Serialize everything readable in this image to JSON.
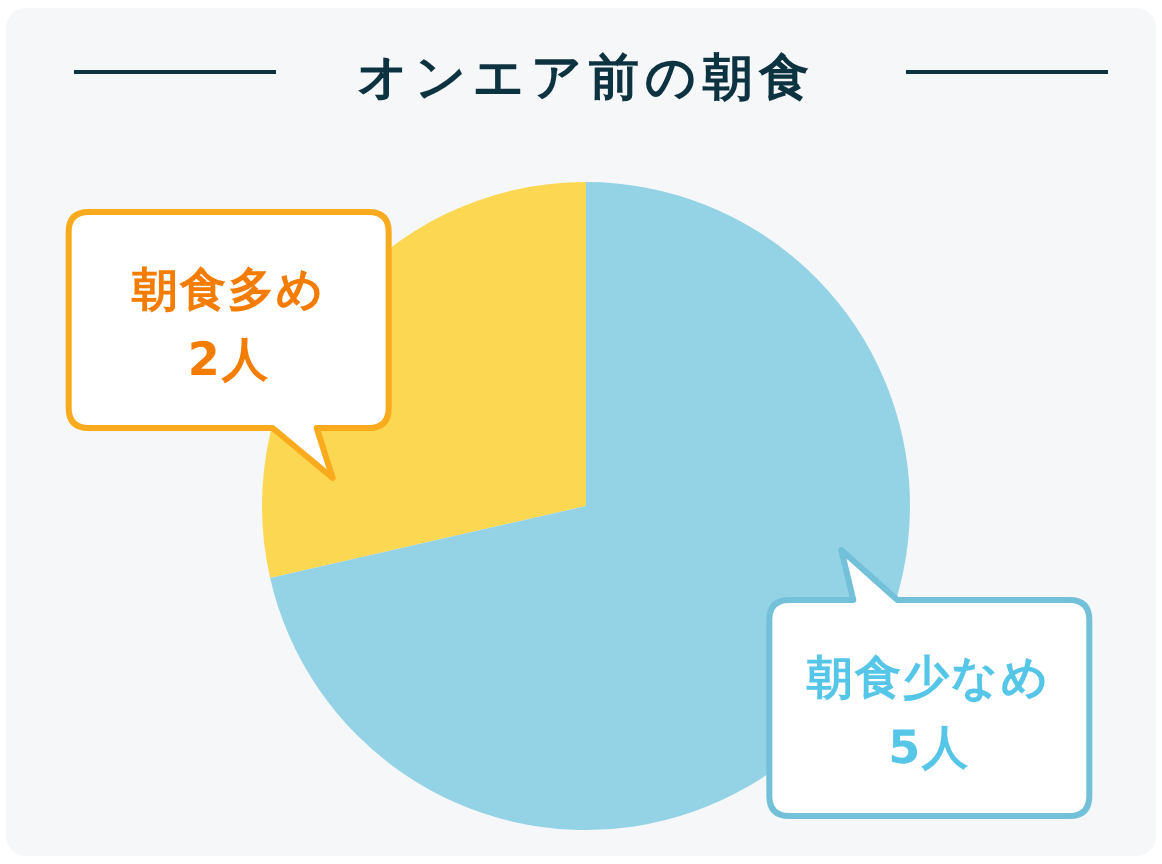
{
  "chart_data": {
    "type": "pie",
    "title": "オンエア前の朝食",
    "categories": [
      "朝食多め",
      "朝食少なめ"
    ],
    "values": [
      2,
      5
    ],
    "colors": [
      "#fcd752",
      "#94d3e5"
    ],
    "value_labels": [
      "2人",
      "5人"
    ]
  }
}
